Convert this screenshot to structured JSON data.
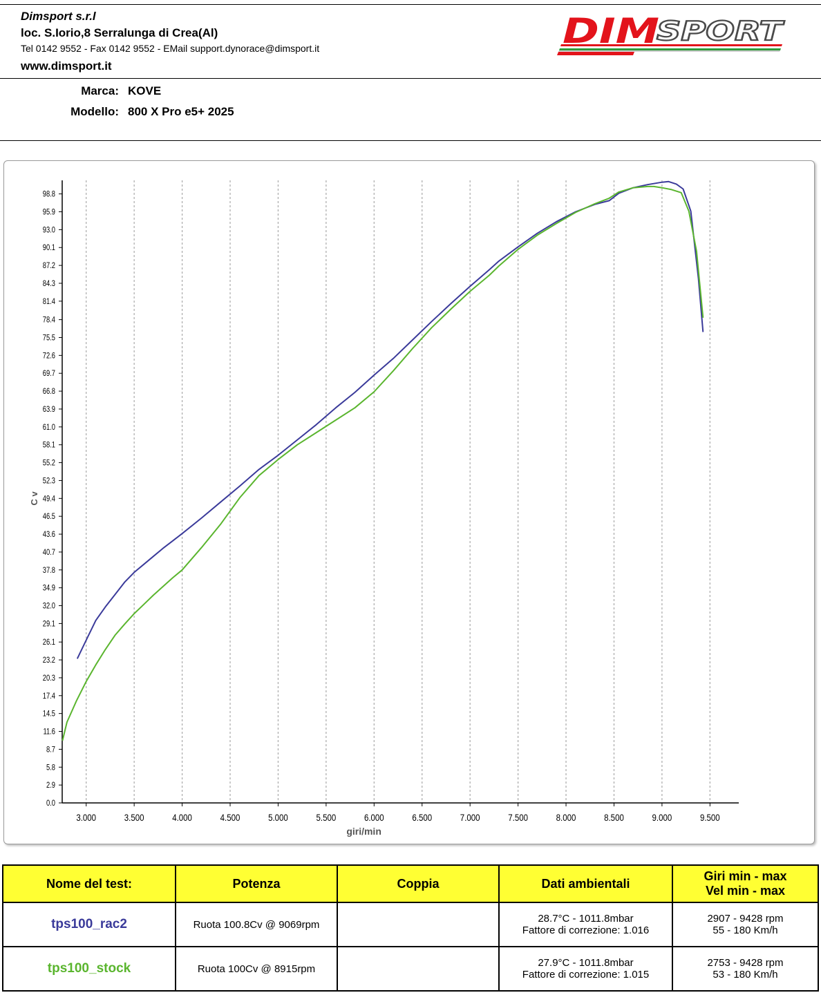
{
  "header": {
    "company": "Dimsport s.r.l",
    "address": "loc. S.Iorio,8 Serralunga di Crea(Al)",
    "contacts": "Tel 0142 9552 - Fax 0142 9552 - EMail support.dynorace@dimsport.it",
    "website": "www.dimsport.it",
    "logo_text": "DIMSPORT"
  },
  "vehicle": {
    "brand_label": "Marca:",
    "brand": "KOVE",
    "model_label": "Modello:",
    "model": "800 X Pro e5+ 2025"
  },
  "colors": {
    "series_rac2": "#3a3a9a",
    "series_stock": "#5ab52e",
    "table_header_bg": "#ffff33",
    "logo_red": "#e3131b"
  },
  "chart_data": {
    "type": "line",
    "title": "",
    "xlabel": "giri/min",
    "ylabel": "C v",
    "xlim": [
      2750,
      9800
    ],
    "ylim": [
      0,
      101
    ],
    "x_ticks": [
      3000,
      3500,
      4000,
      4500,
      5000,
      5500,
      6000,
      6500,
      7000,
      7500,
      8000,
      8500,
      9000,
      9500
    ],
    "x_tick_labels": [
      "3.000",
      "3.500",
      "4.000",
      "4.500",
      "5.000",
      "5.500",
      "6.000",
      "6.500",
      "7.000",
      "7.500",
      "8.000",
      "8.500",
      "9.000",
      "9.500"
    ],
    "y_ticks": [
      0.0,
      2.9,
      5.8,
      8.7,
      11.6,
      14.5,
      17.4,
      20.3,
      23.2,
      26.1,
      29.1,
      32.0,
      34.9,
      37.8,
      40.7,
      43.6,
      46.5,
      49.4,
      52.3,
      55.2,
      58.1,
      61.0,
      63.9,
      66.8,
      69.7,
      72.6,
      75.5,
      78.4,
      81.4,
      84.3,
      87.2,
      90.1,
      93.0,
      95.9,
      98.8
    ],
    "y_tick_labels": [
      "0.0",
      "2.9",
      "5.8",
      "8.7",
      "11.6",
      "14.5",
      "17.4",
      "20.3",
      "23.2",
      "26.1",
      "29.1",
      "32.0",
      "34.9",
      "37.8",
      "40.7",
      "43.6",
      "46.5",
      "49.4",
      "52.3",
      "55.2",
      "58.1",
      "61.0",
      "63.9",
      "66.8",
      "69.7",
      "72.6",
      "75.5",
      "78.4",
      "81.4",
      "84.3",
      "87.2",
      "90.1",
      "93.0",
      "95.9",
      "98.8"
    ],
    "grid": "vertical dashed",
    "series": [
      {
        "name": "tps100_rac2",
        "color": "#3a3a9a",
        "x": [
          2907,
          3000,
          3100,
          3200,
          3300,
          3400,
          3500,
          3600,
          3700,
          3800,
          3900,
          4000,
          4200,
          4400,
          4600,
          4800,
          5000,
          5200,
          5400,
          5600,
          5800,
          6000,
          6200,
          6400,
          6600,
          6800,
          7000,
          7200,
          7300,
          7500,
          7700,
          7900,
          8100,
          8300,
          8450,
          8550,
          8700,
          8850,
          9000,
          9069,
          9150,
          9220,
          9300,
          9380,
          9428
        ],
        "y": [
          23.4,
          26.4,
          29.6,
          31.8,
          33.8,
          35.8,
          37.4,
          38.7,
          40.0,
          41.3,
          42.5,
          43.7,
          46.2,
          48.8,
          51.4,
          54.1,
          56.4,
          58.9,
          61.4,
          64.1,
          66.6,
          69.4,
          72.1,
          75.1,
          78.1,
          81.0,
          83.8,
          86.5,
          87.9,
          90.2,
          92.4,
          94.3,
          95.9,
          97.1,
          97.7,
          98.9,
          99.8,
          100.3,
          100.7,
          100.8,
          100.4,
          99.6,
          96.0,
          85.0,
          76.4
        ]
      },
      {
        "name": "tps100_stock",
        "color": "#5ab52e",
        "x": [
          2753,
          2800,
          2900,
          3000,
          3100,
          3200,
          3300,
          3400,
          3500,
          3600,
          3700,
          3800,
          3900,
          4000,
          4200,
          4400,
          4600,
          4800,
          5000,
          5200,
          5400,
          5600,
          5800,
          6000,
          6200,
          6400,
          6600,
          6800,
          7000,
          7200,
          7300,
          7500,
          7700,
          7900,
          8100,
          8300,
          8450,
          8550,
          8700,
          8850,
          8915,
          9000,
          9100,
          9200,
          9280,
          9360,
          9428
        ],
        "y": [
          10.1,
          13.1,
          16.6,
          19.7,
          22.4,
          24.9,
          27.2,
          29.0,
          30.7,
          32.2,
          33.7,
          35.1,
          36.5,
          37.8,
          41.4,
          45.2,
          49.5,
          53.1,
          55.7,
          58.1,
          60.1,
          62.1,
          64.1,
          66.7,
          70.1,
          73.7,
          77.1,
          80.1,
          83.0,
          85.6,
          87.1,
          89.8,
          92.1,
          94.0,
          95.8,
          97.2,
          98.1,
          99.1,
          99.8,
          100.0,
          100.0,
          99.8,
          99.5,
          99.0,
          96.0,
          89.5,
          78.7
        ]
      }
    ]
  },
  "table": {
    "headers": {
      "name": "Nome del test:",
      "power": "Potenza",
      "torque": "Coppia",
      "ambient": "Dati ambientali",
      "range_line1": "Giri min - max",
      "range_line2": "Vel  min - max"
    },
    "rows": [
      {
        "name": "tps100_rac2",
        "power": "Ruota 100.8Cv @ 9069rpm",
        "torque": "",
        "ambient_line1": "28.7°C - 1011.8mbar",
        "ambient_line2": "Fattore di correzione: 1.016",
        "rpm_range": "2907 - 9428 rpm",
        "speed_range": "55 - 180 Km/h"
      },
      {
        "name": "tps100_stock",
        "power": "Ruota 100Cv @ 8915rpm",
        "torque": "",
        "ambient_line1": "27.9°C - 1011.8mbar",
        "ambient_line2": "Fattore di correzione: 1.015",
        "rpm_range": "2753 - 9428 rpm",
        "speed_range": "53 - 180 Km/h"
      }
    ]
  }
}
